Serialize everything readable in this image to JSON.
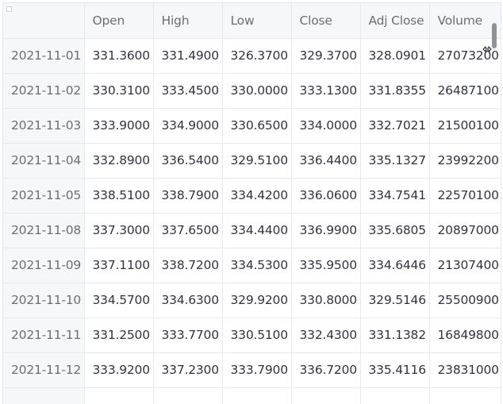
{
  "table": {
    "columns": [
      "",
      "Open",
      "High",
      "Low",
      "Close",
      "Adj Close",
      "Volume"
    ],
    "rows": [
      {
        "date": "2021-11-01",
        "open": "331.3600",
        "high": "331.4900",
        "low": "326.3700",
        "close": "329.3700",
        "adj_close": "328.0901",
        "volume": "27073200"
      },
      {
        "date": "2021-11-02",
        "open": "330.3100",
        "high": "333.4500",
        "low": "330.0000",
        "close": "333.1300",
        "adj_close": "331.8355",
        "volume": "26487100"
      },
      {
        "date": "2021-11-03",
        "open": "333.9000",
        "high": "334.9000",
        "low": "330.6500",
        "close": "334.0000",
        "adj_close": "332.7021",
        "volume": "21500100"
      },
      {
        "date": "2021-11-04",
        "open": "332.8900",
        "high": "336.5400",
        "low": "329.5100",
        "close": "336.4400",
        "adj_close": "335.1327",
        "volume": "23992200"
      },
      {
        "date": "2021-11-05",
        "open": "338.5100",
        "high": "338.7900",
        "low": "334.4200",
        "close": "336.0600",
        "adj_close": "334.7541",
        "volume": "22570100"
      },
      {
        "date": "2021-11-08",
        "open": "337.3000",
        "high": "337.6500",
        "low": "334.4400",
        "close": "336.9900",
        "adj_close": "335.6805",
        "volume": "20897000"
      },
      {
        "date": "2021-11-09",
        "open": "337.1100",
        "high": "338.7200",
        "low": "334.5300",
        "close": "335.9500",
        "adj_close": "334.6446",
        "volume": "21307400"
      },
      {
        "date": "2021-11-10",
        "open": "334.5700",
        "high": "334.6300",
        "low": "329.9200",
        "close": "330.8000",
        "adj_close": "329.5146",
        "volume": "25500900"
      },
      {
        "date": "2021-11-11",
        "open": "331.2500",
        "high": "333.7700",
        "low": "330.5100",
        "close": "332.4300",
        "adj_close": "331.1382",
        "volume": "16849800"
      },
      {
        "date": "2021-11-12",
        "open": "333.9200",
        "high": "337.2300",
        "low": "333.7900",
        "close": "336.7200",
        "adj_close": "335.4116",
        "volume": "23831000"
      }
    ]
  },
  "colors": {
    "header_bg": "#f6f7f9",
    "grid_line": "#e6e9ef",
    "text": "#31333f",
    "muted_text": "#6b6e78",
    "scrollbar": "#8f9297"
  },
  "icons": {
    "cursor": "column-resize-cursor-icon",
    "corner": "select-all-corner-icon"
  }
}
